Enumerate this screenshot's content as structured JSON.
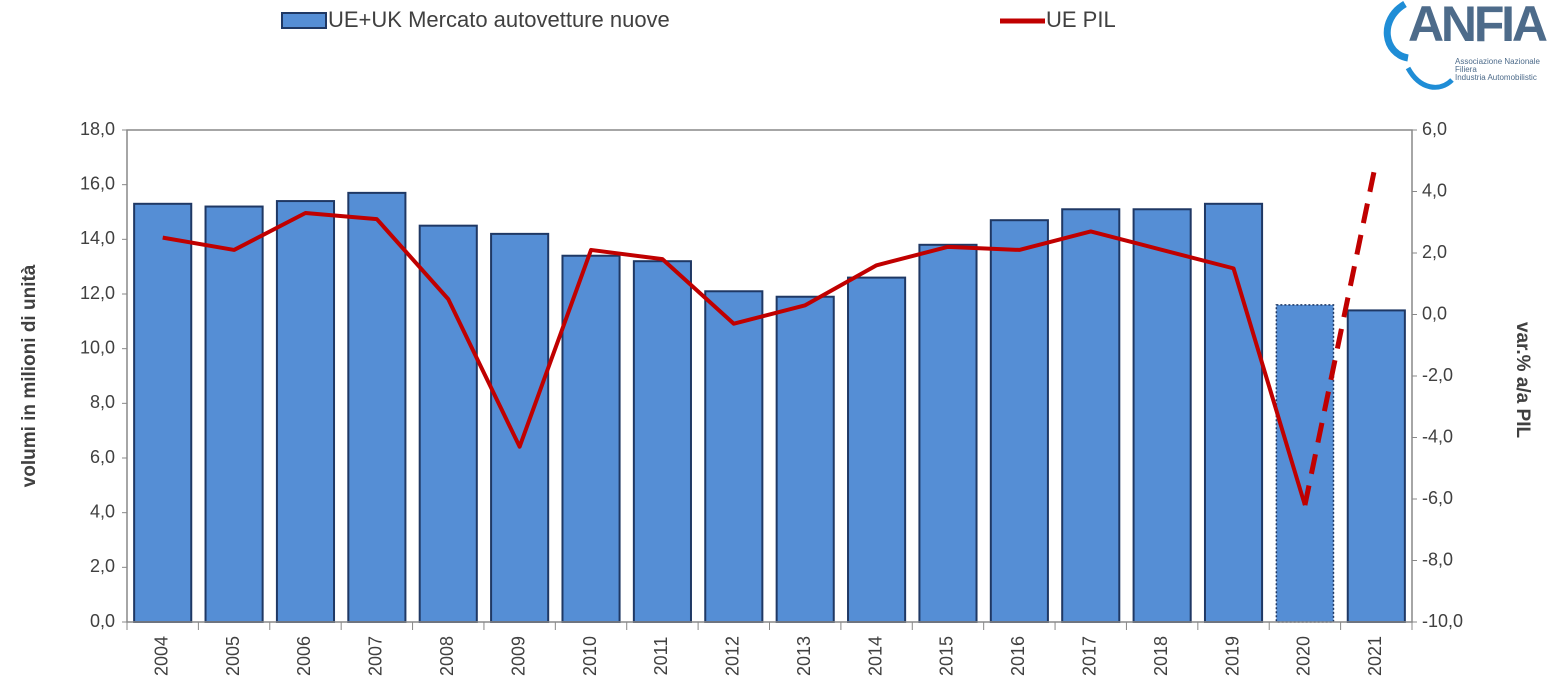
{
  "chart_data": {
    "type": "bar_line",
    "categories": [
      "2004",
      "2005",
      "2006",
      "2007",
      "2008",
      "2009",
      "2010",
      "2011",
      "2012",
      "2013",
      "2014",
      "2015",
      "2016",
      "2017",
      "2018",
      "2019",
      "2020",
      "2021"
    ],
    "series": [
      {
        "name": "UE+UK Mercato autovetture nuove",
        "type": "bar",
        "axis": "y",
        "color": "#558ed5",
        "border": "#1f3864",
        "values": [
          15.3,
          15.2,
          15.4,
          15.7,
          14.5,
          14.2,
          13.4,
          13.2,
          12.1,
          11.9,
          12.6,
          13.8,
          14.7,
          15.1,
          15.1,
          15.3,
          11.6,
          11.4
        ],
        "dotted_border": [
          false,
          false,
          false,
          false,
          false,
          false,
          false,
          false,
          false,
          false,
          false,
          false,
          false,
          false,
          false,
          false,
          true,
          false
        ]
      },
      {
        "name": "UE PIL",
        "type": "line",
        "axis": "y2",
        "color": "#c00000",
        "values": [
          2.5,
          2.1,
          3.3,
          3.1,
          0.5,
          -4.3,
          2.1,
          1.8,
          -0.3,
          0.3,
          1.6,
          2.2,
          2.1,
          2.7,
          2.1,
          1.5,
          -6.2,
          5.0
        ],
        "dashed": [
          false,
          false,
          false,
          false,
          false,
          false,
          false,
          false,
          false,
          false,
          false,
          false,
          false,
          false,
          false,
          false,
          false,
          true
        ]
      }
    ],
    "ylabel": "volumi in milioni di unità",
    "y2label": "var.% a/a PIL",
    "ylim": [
      0,
      18
    ],
    "yticks": [
      {
        "value": 0,
        "label": "0,0"
      },
      {
        "value": 2,
        "label": "2,0"
      },
      {
        "value": 4,
        "label": "4,0"
      },
      {
        "value": 6,
        "label": "6,0"
      },
      {
        "value": 8,
        "label": "8,0"
      },
      {
        "value": 10,
        "label": "10,0"
      },
      {
        "value": 12,
        "label": "12,0"
      },
      {
        "value": 14,
        "label": "14,0"
      },
      {
        "value": 16,
        "label": "16,0"
      },
      {
        "value": 18,
        "label": "18,0"
      }
    ],
    "y2lim": [
      -10,
      6
    ],
    "y2ticks": [
      {
        "value": -10,
        "label": "-10,0"
      },
      {
        "value": -8,
        "label": "-8,0"
      },
      {
        "value": -6,
        "label": "-6,0"
      },
      {
        "value": -4,
        "label": "-4,0"
      },
      {
        "value": -2,
        "label": "-2,0"
      },
      {
        "value": 0,
        "label": "0,0"
      },
      {
        "value": 2,
        "label": "2,0"
      },
      {
        "value": 4,
        "label": "4,0"
      },
      {
        "value": 6,
        "label": "6,0"
      }
    ],
    "grid": false,
    "legend": "top"
  },
  "logo": {
    "name": "ANFIA",
    "lines": [
      "Associazione Nazionale",
      "Filiera",
      "Industria Automobilistic"
    ]
  }
}
